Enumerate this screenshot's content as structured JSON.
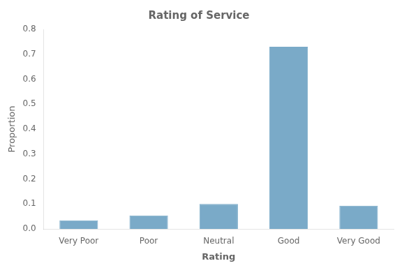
{
  "chart_data": {
    "type": "bar",
    "title": "Rating of Service",
    "xlabel": "Rating",
    "ylabel": "Proportion",
    "categories": [
      "Very Poor",
      "Poor",
      "Neutral",
      "Good",
      "Very Good"
    ],
    "values": [
      0.034,
      0.054,
      0.1,
      0.73,
      0.093
    ],
    "color": "#7aaac8",
    "ylim": [
      0.0,
      0.8
    ],
    "yticks": [
      {
        "value": 0.0,
        "label": "0.0"
      },
      0.1,
      0.2,
      0.3,
      0.4,
      0.5,
      0.6,
      0.7,
      0.8
    ],
    "grid": false
  }
}
